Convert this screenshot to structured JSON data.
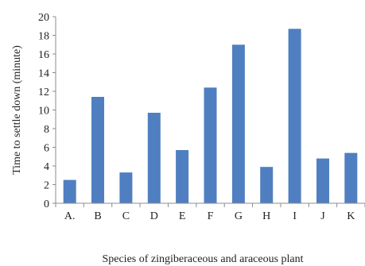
{
  "colors": {
    "bar": "#4f7fc0",
    "axis": "#8c8c8c",
    "text": "#222222"
  },
  "chart_data": {
    "type": "bar",
    "title": "",
    "xlabel": "Species of zingiberaceous and araceous  plant",
    "ylabel": "Time to settle down (minute)",
    "categories": [
      "A.",
      "B",
      "C",
      "D",
      "E",
      "F",
      "G",
      "H",
      "I",
      "J",
      "K"
    ],
    "values": [
      2.5,
      11.4,
      3.3,
      9.7,
      5.7,
      12.4,
      17.0,
      3.9,
      18.7,
      4.8,
      5.4
    ],
    "ylim": [
      0,
      20
    ],
    "yticks": [
      "0",
      "2",
      "4",
      "6",
      "8",
      "10",
      "12",
      "14",
      "16",
      "18",
      "20"
    ],
    "grid": false,
    "legend": "none"
  }
}
